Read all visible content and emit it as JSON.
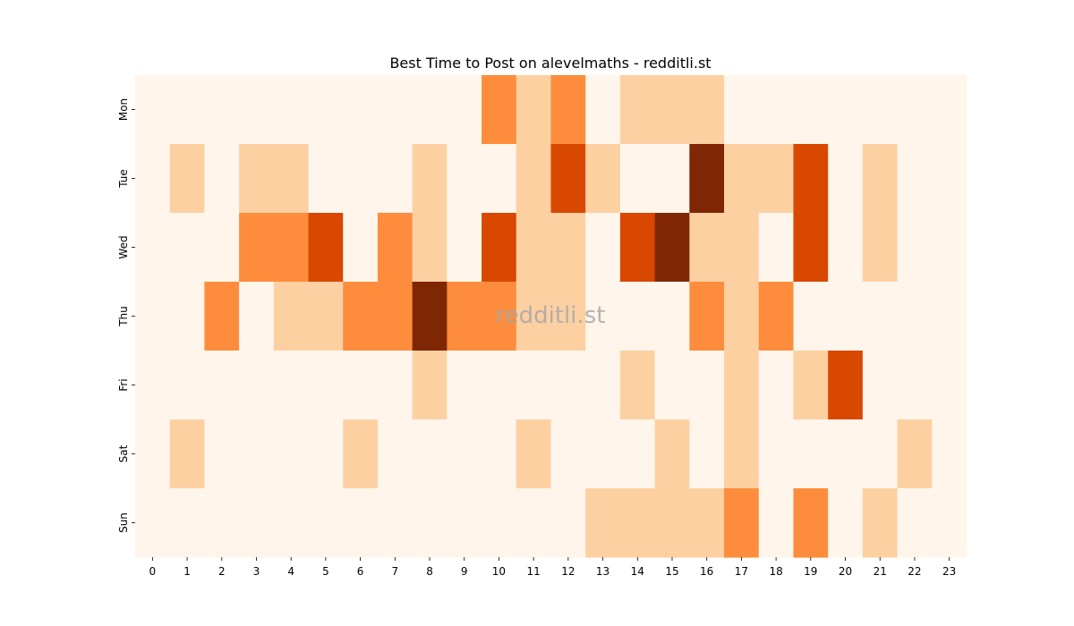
{
  "chart_data": {
    "type": "heatmap",
    "title": "Best Time to Post on alevelmaths - redditli.st",
    "watermark": "redditli.st",
    "xlabel": "",
    "ylabel": "",
    "x_categories": [
      "0",
      "1",
      "2",
      "3",
      "4",
      "5",
      "6",
      "7",
      "8",
      "9",
      "10",
      "11",
      "12",
      "13",
      "14",
      "15",
      "16",
      "17",
      "18",
      "19",
      "20",
      "21",
      "22",
      "23"
    ],
    "y_categories": [
      "Mon",
      "Tue",
      "Wed",
      "Thu",
      "Fri",
      "Sat",
      "Sun"
    ],
    "levels": 4,
    "colors": [
      "#fff5eb",
      "#fdd0a2",
      "#fd8d3c",
      "#d94801",
      "#7f2704"
    ],
    "values": [
      [
        0,
        0,
        0,
        0,
        0,
        0,
        0,
        0,
        0,
        0,
        2,
        1,
        2,
        0,
        1,
        1,
        1,
        0,
        0,
        0,
        0,
        0,
        0,
        0
      ],
      [
        0,
        1,
        0,
        1,
        1,
        0,
        0,
        0,
        1,
        0,
        0,
        1,
        3,
        1,
        0,
        0,
        4,
        1,
        1,
        3,
        0,
        1,
        0,
        0
      ],
      [
        0,
        0,
        0,
        2,
        2,
        3,
        0,
        2,
        1,
        0,
        3,
        1,
        1,
        0,
        3,
        4,
        1,
        1,
        0,
        3,
        0,
        1,
        0,
        0
      ],
      [
        0,
        0,
        2,
        0,
        1,
        1,
        2,
        2,
        4,
        2,
        2,
        1,
        1,
        0,
        0,
        0,
        2,
        1,
        2,
        0,
        0,
        0,
        0,
        0
      ],
      [
        0,
        0,
        0,
        0,
        0,
        0,
        0,
        0,
        1,
        0,
        0,
        0,
        0,
        0,
        1,
        0,
        0,
        1,
        0,
        1,
        3,
        0,
        0,
        0
      ],
      [
        0,
        1,
        0,
        0,
        0,
        0,
        1,
        0,
        0,
        0,
        0,
        1,
        0,
        0,
        0,
        1,
        0,
        1,
        0,
        0,
        0,
        0,
        1,
        0
      ],
      [
        0,
        0,
        0,
        0,
        0,
        0,
        0,
        0,
        0,
        0,
        0,
        0,
        0,
        1,
        1,
        1,
        1,
        2,
        0,
        2,
        0,
        1,
        0,
        0
      ]
    ]
  }
}
